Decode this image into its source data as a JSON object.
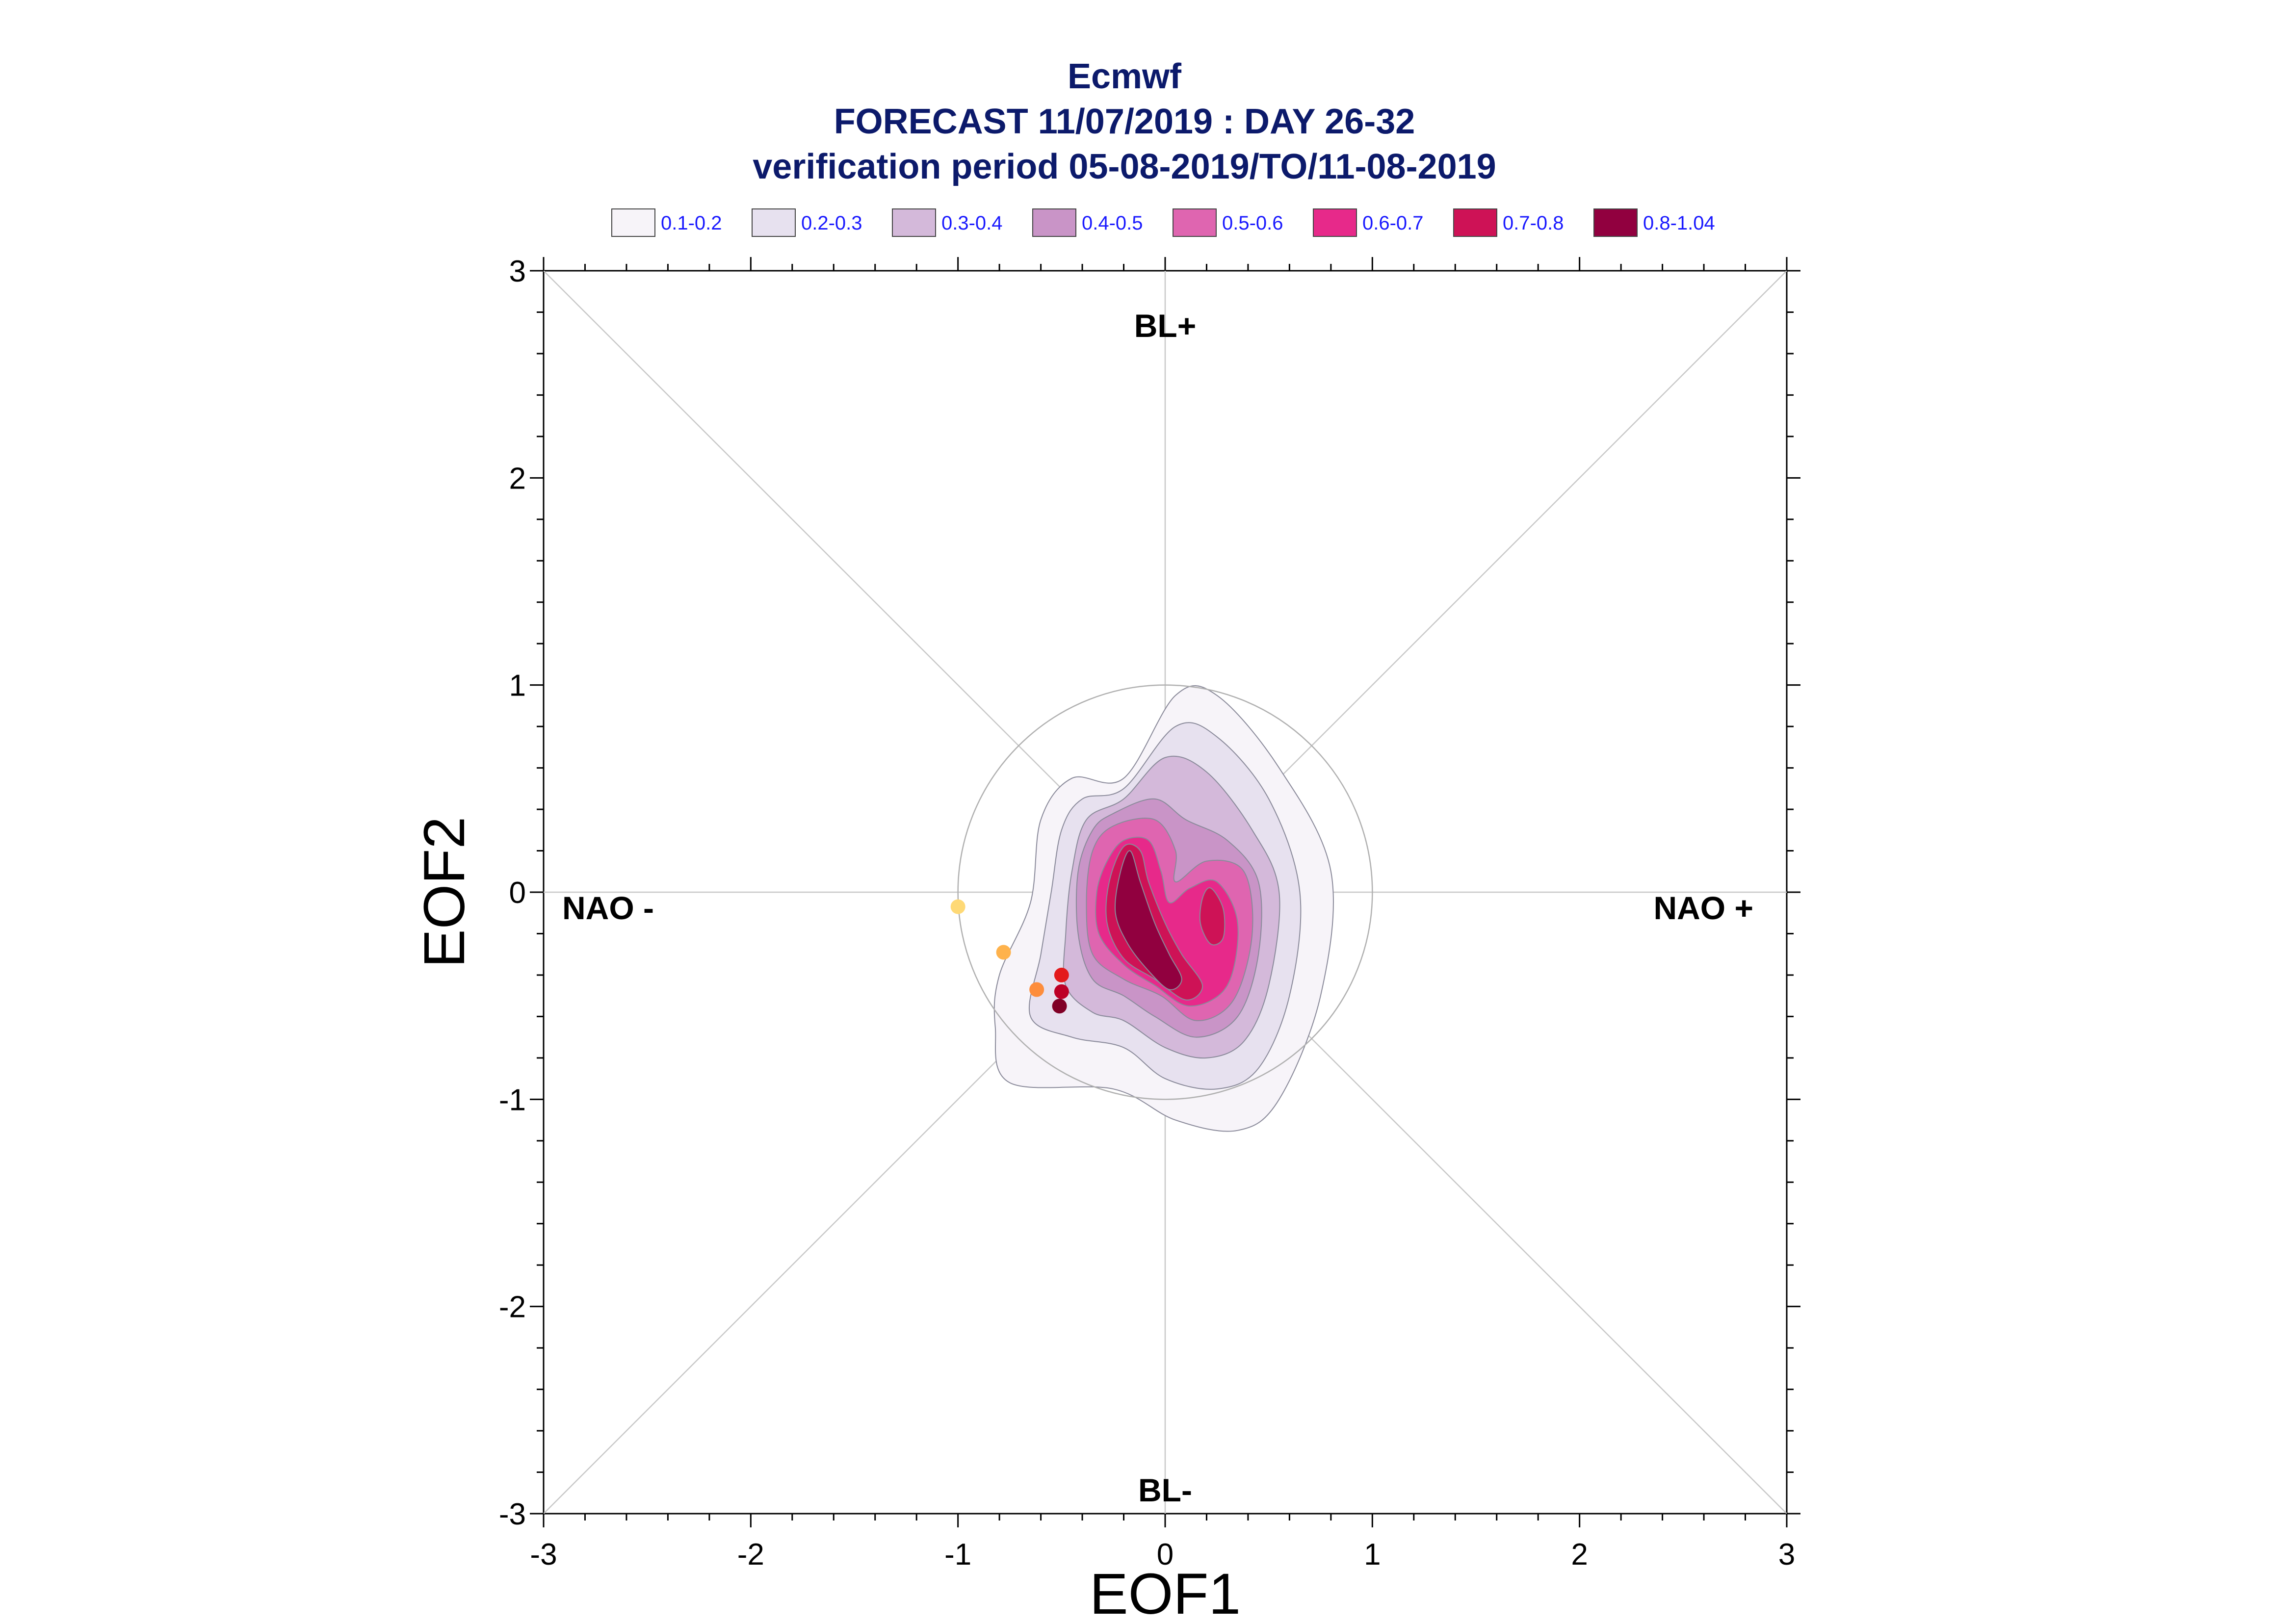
{
  "chart_data": {
    "type": "contour",
    "title_lines": [
      "Ecmwf",
      "FORECAST 11/07/2019 : DAY 26-32",
      "verification period 05-08-2019/TO/11-08-2019"
    ],
    "xlabel": "EOF1",
    "ylabel": "EOF2",
    "xlim": [
      -3,
      3
    ],
    "ylim": [
      -3,
      3
    ],
    "xticks": [
      -3,
      -2,
      -1,
      0,
      1,
      2,
      3
    ],
    "yticks": [
      -3,
      -2,
      -1,
      0,
      1,
      2,
      3
    ],
    "tick_labels": [
      "-3",
      "-2",
      "-1",
      "0",
      "1",
      "2",
      "3"
    ],
    "region_labels": {
      "top": "BL+",
      "bottom": "BL-",
      "left": "NAO -",
      "right": "NAO +"
    },
    "reference_circle_radius": 1.0,
    "legend": [
      {
        "label": "0.1-0.2",
        "color": "#f7f4f9"
      },
      {
        "label": "0.2-0.3",
        "color": "#e7e1ef"
      },
      {
        "label": "0.3-0.4",
        "color": "#d4b9da"
      },
      {
        "label": "0.4-0.5",
        "color": "#c994c7"
      },
      {
        "label": "0.5-0.6",
        "color": "#df65b0"
      },
      {
        "label": "0.6-0.7",
        "color": "#e7298a"
      },
      {
        "label": "0.7-0.8",
        "color": "#ce1256"
      },
      {
        "label": "0.8-1.04",
        "color": "#91003f"
      }
    ],
    "contours": [
      {
        "level": "0.1-0.2",
        "points": [
          [
            -0.2,
            0.55
          ],
          [
            0.05,
            0.95
          ],
          [
            0.25,
            0.95
          ],
          [
            0.55,
            0.6
          ],
          [
            0.8,
            0.1
          ],
          [
            0.75,
            -0.5
          ],
          [
            0.55,
            -1.0
          ],
          [
            0.35,
            -1.15
          ],
          [
            0.05,
            -1.1
          ],
          [
            -0.25,
            -0.95
          ],
          [
            -0.75,
            -0.92
          ],
          [
            -0.82,
            -0.65
          ],
          [
            -0.8,
            -0.4
          ],
          [
            -0.65,
            -0.05
          ],
          [
            -0.6,
            0.35
          ],
          [
            -0.45,
            0.55
          ]
        ]
      },
      {
        "level": "0.2-0.3",
        "points": [
          [
            -0.2,
            0.5
          ],
          [
            0.05,
            0.8
          ],
          [
            0.25,
            0.75
          ],
          [
            0.5,
            0.45
          ],
          [
            0.65,
            0.0
          ],
          [
            0.6,
            -0.5
          ],
          [
            0.45,
            -0.85
          ],
          [
            0.25,
            -0.95
          ],
          [
            0.0,
            -0.9
          ],
          [
            -0.2,
            -0.75
          ],
          [
            -0.45,
            -0.7
          ],
          [
            -0.65,
            -0.6
          ],
          [
            -0.6,
            -0.3
          ],
          [
            -0.55,
            0.0
          ],
          [
            -0.5,
            0.3
          ],
          [
            -0.4,
            0.45
          ]
        ]
      },
      {
        "level": "0.3-0.4",
        "points": [
          [
            -0.2,
            0.45
          ],
          [
            0.0,
            0.65
          ],
          [
            0.2,
            0.58
          ],
          [
            0.42,
            0.3
          ],
          [
            0.55,
            0.0
          ],
          [
            0.5,
            -0.45
          ],
          [
            0.38,
            -0.72
          ],
          [
            0.2,
            -0.8
          ],
          [
            0.0,
            -0.75
          ],
          [
            -0.2,
            -0.62
          ],
          [
            -0.35,
            -0.58
          ],
          [
            -0.48,
            -0.45
          ],
          [
            -0.48,
            -0.2
          ],
          [
            -0.45,
            0.1
          ],
          [
            -0.38,
            0.35
          ]
        ]
      },
      {
        "level": "0.4-0.5",
        "points": [
          [
            -0.25,
            0.38
          ],
          [
            -0.05,
            0.45
          ],
          [
            0.1,
            0.35
          ],
          [
            0.3,
            0.25
          ],
          [
            0.45,
            0.05
          ],
          [
            0.45,
            -0.3
          ],
          [
            0.35,
            -0.6
          ],
          [
            0.15,
            -0.7
          ],
          [
            -0.05,
            -0.6
          ],
          [
            -0.2,
            -0.5
          ],
          [
            -0.35,
            -0.42
          ],
          [
            -0.42,
            -0.2
          ],
          [
            -0.42,
            0.1
          ],
          [
            -0.35,
            0.3
          ]
        ]
      },
      {
        "level": "0.5-0.6",
        "points": [
          [
            -0.25,
            0.32
          ],
          [
            -0.05,
            0.35
          ],
          [
            0.05,
            0.2
          ],
          [
            0.05,
            0.05
          ],
          [
            0.2,
            0.15
          ],
          [
            0.38,
            0.1
          ],
          [
            0.42,
            -0.2
          ],
          [
            0.33,
            -0.52
          ],
          [
            0.15,
            -0.62
          ],
          [
            -0.02,
            -0.5
          ],
          [
            -0.2,
            -0.42
          ],
          [
            -0.35,
            -0.3
          ],
          [
            -0.38,
            -0.05
          ],
          [
            -0.35,
            0.2
          ]
        ]
      },
      {
        "level": "0.6-0.7",
        "points": [
          [
            -0.2,
            0.25
          ],
          [
            -0.08,
            0.25
          ],
          [
            -0.02,
            0.1
          ],
          [
            0.02,
            -0.05
          ],
          [
            0.12,
            0.02
          ],
          [
            0.25,
            0.05
          ],
          [
            0.35,
            -0.15
          ],
          [
            0.3,
            -0.45
          ],
          [
            0.12,
            -0.55
          ],
          [
            -0.05,
            -0.45
          ],
          [
            -0.2,
            -0.35
          ],
          [
            -0.32,
            -0.2
          ],
          [
            -0.33,
            0.0
          ],
          [
            -0.28,
            0.15
          ]
        ]
      },
      {
        "level": "0.7-0.8",
        "points": [
          [
            -0.2,
            0.22
          ],
          [
            -0.12,
            0.2
          ],
          [
            -0.08,
            0.05
          ],
          [
            0.0,
            -0.15
          ],
          [
            0.08,
            -0.3
          ],
          [
            0.18,
            -0.45
          ],
          [
            0.1,
            -0.52
          ],
          [
            -0.05,
            -0.42
          ],
          [
            -0.2,
            -0.32
          ],
          [
            -0.28,
            -0.15
          ],
          [
            -0.27,
            0.05
          ]
        ]
      },
      {
        "level": "0.7-0.8",
        "points": [
          [
            0.22,
            0.02
          ],
          [
            0.28,
            -0.08
          ],
          [
            0.28,
            -0.22
          ],
          [
            0.22,
            -0.25
          ],
          [
            0.17,
            -0.15
          ],
          [
            0.18,
            -0.03
          ]
        ]
      },
      {
        "level": "0.8-1.04",
        "points": [
          [
            -0.17,
            0.2
          ],
          [
            -0.12,
            0.05
          ],
          [
            -0.05,
            -0.15
          ],
          [
            0.02,
            -0.3
          ],
          [
            0.08,
            -0.42
          ],
          [
            0.02,
            -0.47
          ],
          [
            -0.08,
            -0.38
          ],
          [
            -0.18,
            -0.25
          ],
          [
            -0.24,
            -0.1
          ],
          [
            -0.22,
            0.08
          ]
        ]
      }
    ],
    "trajectory_points": [
      {
        "x": -1.0,
        "y": -0.07,
        "color": "#fed976"
      },
      {
        "x": -0.78,
        "y": -0.29,
        "color": "#feb24c"
      },
      {
        "x": -0.62,
        "y": -0.47,
        "color": "#fd8d3c"
      },
      {
        "x": -0.5,
        "y": -0.4,
        "color": "#e31a1c"
      },
      {
        "x": -0.5,
        "y": -0.48,
        "color": "#bd0026"
      },
      {
        "x": -0.51,
        "y": -0.55,
        "color": "#800026"
      }
    ]
  }
}
